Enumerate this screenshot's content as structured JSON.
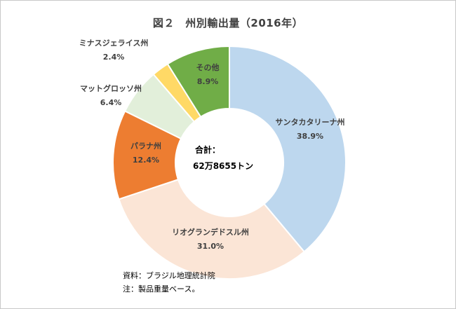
{
  "chart_data": {
    "type": "donut",
    "title": "図２　州別輸出量（2016年）",
    "center_label": "合計：",
    "center_value": "62万8655トン",
    "slices": [
      {
        "name": "サンタカタリーナ州",
        "value": 38.9,
        "label": "38.9%",
        "color": "#bdd7ee"
      },
      {
        "name": "リオグランデドスル州",
        "value": 31.0,
        "label": "31.0%",
        "color": "#fbe5d6"
      },
      {
        "name": "パラナ州",
        "value": 12.4,
        "label": "12.4%",
        "color": "#ed7d31"
      },
      {
        "name": "マットグロッソ州",
        "value": 6.4,
        "label": "6.4%",
        "color": "#e2efda"
      },
      {
        "name": "ミナスジェライス州",
        "value": 2.4,
        "label": "2.4%",
        "color": "#ffd966"
      },
      {
        "name": "その他",
        "value": 8.9,
        "label": "8.9%",
        "color": "#70ad47"
      }
    ],
    "start": "top, clockwise"
  },
  "notes": {
    "source": "資料：ブラジル地理統計院",
    "note": "注：製品重量ベース。"
  }
}
